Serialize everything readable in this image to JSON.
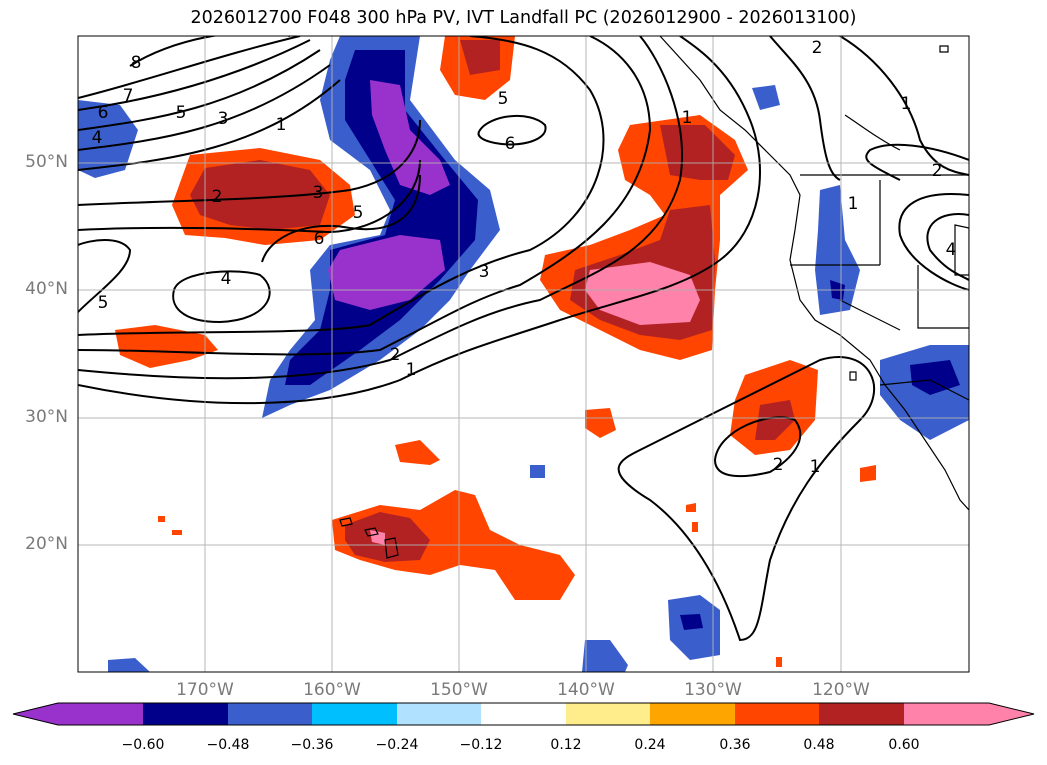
{
  "title": "2026012700 F048 300 hPa PV, IVT Landfall PC (2026012900 - 2026013100)",
  "map": {
    "lat_labels": [
      "50°N",
      "40°N",
      "30°N",
      "20°N"
    ],
    "lon_labels": [
      "170°W",
      "160°W",
      "150°W",
      "140°W",
      "130°W",
      "120°W"
    ],
    "contour_labels": [
      "8",
      "7",
      "6",
      "5",
      "4",
      "3",
      "1",
      "2",
      "3",
      "5",
      "6",
      "4",
      "5",
      "3",
      "2",
      "1",
      "6",
      "5",
      "2",
      "1",
      "1",
      "2",
      "4",
      "1",
      "2",
      "1"
    ]
  },
  "colorbar": {
    "ticks": [
      "−0.60",
      "−0.48",
      "−0.36",
      "−0.24",
      "−0.12",
      "0.12",
      "0.24",
      "0.36",
      "0.48",
      "0.60"
    ],
    "colors": [
      "#9932cc",
      "#00008b",
      "#3a5fcd",
      "#00bfff",
      "#b0e2ff",
      "#ffffff",
      "#ffec8b",
      "#ffa500",
      "#ff4500",
      "#b22222",
      "#ff82ab"
    ]
  }
}
